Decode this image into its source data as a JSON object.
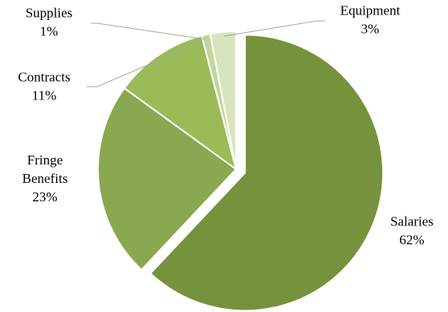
{
  "chart_data": {
    "type": "pie",
    "title": "",
    "slices": [
      {
        "name": "Salaries",
        "lines": [
          "Salaries"
        ],
        "value": 62,
        "value_label": "62%",
        "color": "#76923c",
        "exploded": true
      },
      {
        "name": "Fringe Benefits",
        "lines": [
          "Fringe",
          "Benefits"
        ],
        "value": 23,
        "value_label": "23%",
        "color": "#8aa84f",
        "exploded": false
      },
      {
        "name": "Contracts",
        "lines": [
          "Contracts"
        ],
        "value": 11,
        "value_label": "11%",
        "color": "#9bbb59",
        "exploded": false
      },
      {
        "name": "Supplies",
        "lines": [
          "Supplies"
        ],
        "value": 1,
        "value_label": "1%",
        "color": "#c3d69b",
        "exploded": false
      },
      {
        "name": "Equipment",
        "lines": [
          "Equipment"
        ],
        "value": 3,
        "value_label": "3%",
        "color": "#d7e4bd",
        "exploded": false
      }
    ],
    "start_angle_deg": 0,
    "direction": "clockwise",
    "legend": "none",
    "data_labels": "outside with leader lines for small slices"
  }
}
